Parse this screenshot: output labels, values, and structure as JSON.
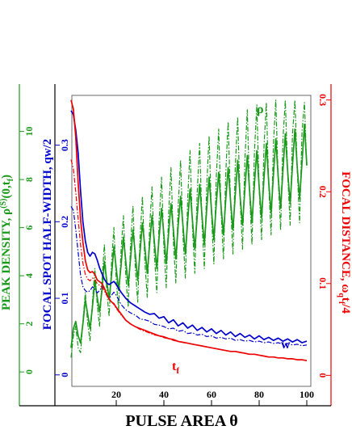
{
  "chart_data": {
    "type": "line",
    "xlabel": "PULSE  AREA  θ",
    "xlim": [
      0,
      100
    ],
    "x_ticks": [
      "20",
      "40",
      "60",
      "80",
      "100"
    ],
    "axes": {
      "peak_density": {
        "label": "PEAK  DENSITY,  ρ(S)(0,tf)",
        "label_main": "PEAK  DENSITY,  ρ",
        "label_sup": "(S)",
        "label_tail": "(0,t",
        "label_sub": "f",
        "label_end": ")",
        "ylim": [
          -0.6,
          11.5
        ],
        "ticks": [
          "0",
          "2",
          "4",
          "6",
          "8",
          "10"
        ],
        "color": "#1a9a1a"
      },
      "half_width": {
        "label": "FOCAL  SPOT  HALF-WIDTH,  qw/2",
        "ylim": [
          -0.015,
          0.365
        ],
        "ticks": [
          "0",
          "0.1",
          "0.2",
          "0.3"
        ],
        "color": "#0000cc"
      },
      "focal_distance": {
        "label": "FOCAL  DISTANCE,  ωqtf/4",
        "label_main": "FOCAL  DISTANCE,  ω",
        "label_sub1": "q",
        "label_mid": "t",
        "label_sub2": "f",
        "label_end": "/4",
        "ylim": [
          -0.012,
          0.305
        ],
        "ticks": [
          "0",
          "0.1",
          "0.2",
          "0.3"
        ],
        "color": "#ee0000"
      }
    },
    "annotations": {
      "rho": "ρ",
      "w": "w",
      "tf_main": "t",
      "tf_sub": "f"
    },
    "series": [
      {
        "key": "rho_solid",
        "axis": "peak_density",
        "color": "#1a9a1a",
        "style": "solid",
        "x": [
          1,
          2,
          3,
          4,
          5,
          6,
          7,
          8,
          9,
          10,
          11,
          12,
          13,
          14,
          15,
          16,
          17,
          18,
          19,
          20,
          21,
          22,
          23,
          24,
          25,
          26,
          27,
          28,
          29,
          30,
          31,
          32,
          33,
          34,
          35,
          36,
          37,
          38,
          39,
          40,
          41,
          42,
          43,
          44,
          45,
          46,
          47,
          48,
          49,
          50,
          51,
          52,
          53,
          54,
          55,
          56,
          57,
          58,
          59,
          60,
          61,
          62,
          63,
          64,
          65,
          66,
          67,
          68,
          69,
          70,
          71,
          72,
          73,
          74,
          75,
          76,
          77,
          78,
          79,
          80,
          81,
          82,
          83,
          84,
          85,
          86,
          87,
          88,
          89,
          90,
          91,
          92,
          93,
          94,
          95,
          96,
          97,
          98,
          99,
          100
        ],
        "values": [
          1.0,
          1.8,
          2.1,
          1.5,
          1.2,
          2.0,
          3.0,
          2.4,
          1.8,
          2.7,
          3.8,
          3.1,
          2.5,
          3.4,
          4.6,
          3.8,
          3.0,
          4.0,
          5.2,
          4.3,
          3.4,
          4.4,
          5.6,
          4.6,
          3.6,
          4.7,
          5.9,
          4.9,
          3.8,
          5.0,
          6.2,
          5.2,
          4.1,
          5.3,
          6.5,
          5.4,
          4.3,
          5.6,
          6.8,
          5.7,
          4.5,
          5.8,
          7.0,
          5.9,
          4.7,
          6.1,
          7.3,
          6.1,
          4.9,
          6.3,
          7.6,
          6.3,
          5.1,
          6.5,
          7.8,
          6.5,
          5.3,
          6.8,
          8.1,
          6.7,
          5.5,
          7.0,
          8.3,
          6.9,
          5.7,
          7.2,
          8.5,
          7.1,
          5.9,
          7.4,
          8.8,
          7.3,
          6.1,
          7.6,
          9.0,
          7.5,
          6.2,
          7.8,
          9.2,
          7.7,
          6.4,
          8.0,
          9.5,
          7.9,
          6.6,
          8.2,
          9.7,
          8.1,
          6.8,
          8.4,
          9.9,
          8.3,
          7.0,
          8.6,
          10.1,
          8.5,
          7.2,
          8.7,
          10.3,
          8.6
        ]
      },
      {
        "key": "rho_dashdot",
        "axis": "peak_density",
        "color": "#1a9a1a",
        "style": "dashdot",
        "x": [
          1,
          2,
          3,
          4,
          5,
          6,
          7,
          8,
          9,
          10,
          11,
          12,
          13,
          14,
          15,
          16,
          17,
          18,
          19,
          20,
          21,
          22,
          23,
          24,
          25,
          26,
          27,
          28,
          29,
          30,
          31,
          32,
          33,
          34,
          35,
          36,
          37,
          38,
          39,
          40,
          41,
          42,
          43,
          44,
          45,
          46,
          47,
          48,
          49,
          50,
          51,
          52,
          53,
          54,
          55,
          56,
          57,
          58,
          59,
          60,
          61,
          62,
          63,
          64,
          65,
          66,
          67,
          68,
          69,
          70,
          71,
          72,
          73,
          74,
          75,
          76,
          77,
          78,
          79,
          80,
          81,
          82,
          83,
          84,
          85,
          86,
          87,
          88,
          89,
          90,
          91,
          92,
          93,
          94,
          95,
          96,
          97,
          98,
          99,
          100
        ],
        "values": [
          0.6,
          1.5,
          1.9,
          1.0,
          0.8,
          2.1,
          3.3,
          2.0,
          1.3,
          2.9,
          4.3,
          2.8,
          1.9,
          3.8,
          5.3,
          3.4,
          2.3,
          4.5,
          6.0,
          3.8,
          2.6,
          5.0,
          6.5,
          4.0,
          2.7,
          5.3,
          6.9,
          4.3,
          2.9,
          5.6,
          7.3,
          4.6,
          3.1,
          6.0,
          7.7,
          4.9,
          3.3,
          6.3,
          8.1,
          5.2,
          3.5,
          6.6,
          8.5,
          5.4,
          3.7,
          6.9,
          8.8,
          5.7,
          3.9,
          7.2,
          9.2,
          6.0,
          4.1,
          7.5,
          9.5,
          6.2,
          4.3,
          7.8,
          9.8,
          6.5,
          4.5,
          8.1,
          10.1,
          6.7,
          4.7,
          8.3,
          10.4,
          7.0,
          4.9,
          8.6,
          10.6,
          7.2,
          5.1,
          8.8,
          10.9,
          7.4,
          5.3,
          9.1,
          11.1,
          7.6,
          5.5,
          9.3,
          11.2,
          7.8,
          5.7,
          9.5,
          11.3,
          8.0,
          5.9,
          9.7,
          11.3,
          8.2,
          6.1,
          9.9,
          11.3,
          8.4,
          6.2,
          10.0,
          11.2,
          8.5
        ]
      },
      {
        "key": "w_solid",
        "axis": "half_width",
        "color": "#0000cc",
        "style": "solid",
        "x": [
          1,
          2,
          3,
          4,
          5,
          6,
          7,
          8,
          9,
          10,
          11,
          12,
          13,
          14,
          15,
          16,
          17,
          18,
          19,
          20,
          22,
          24,
          26,
          28,
          30,
          32,
          34,
          36,
          38,
          40,
          42,
          44,
          46,
          48,
          50,
          52,
          54,
          56,
          58,
          60,
          62,
          64,
          66,
          68,
          70,
          72,
          74,
          76,
          78,
          80,
          82,
          84,
          86,
          88,
          90,
          92,
          94,
          96,
          98,
          100
        ],
        "values": [
          0.345,
          0.34,
          0.32,
          0.29,
          0.24,
          0.2,
          0.175,
          0.16,
          0.155,
          0.16,
          0.158,
          0.15,
          0.14,
          0.132,
          0.125,
          0.12,
          0.118,
          0.12,
          0.122,
          0.118,
          0.108,
          0.1,
          0.094,
          0.09,
          0.086,
          0.082,
          0.079,
          0.08,
          0.074,
          0.076,
          0.068,
          0.072,
          0.064,
          0.068,
          0.061,
          0.065,
          0.058,
          0.062,
          0.056,
          0.06,
          0.054,
          0.058,
          0.052,
          0.056,
          0.05,
          0.054,
          0.049,
          0.052,
          0.047,
          0.051,
          0.046,
          0.049,
          0.045,
          0.048,
          0.044,
          0.047,
          0.043,
          0.046,
          0.042,
          0.044
        ]
      },
      {
        "key": "w_dashdot",
        "axis": "half_width",
        "color": "#0000cc",
        "style": "dashdot",
        "x": [
          1,
          2,
          3,
          4,
          5,
          6,
          7,
          8,
          9,
          10,
          11,
          12,
          13,
          14,
          15,
          16,
          17,
          18,
          19,
          20,
          22,
          24,
          26,
          28,
          30,
          32,
          34,
          36,
          38,
          40,
          42,
          44,
          46,
          48,
          50,
          52,
          54,
          56,
          58,
          60,
          62,
          64,
          66,
          68,
          70,
          72,
          74,
          76,
          78,
          80,
          82,
          84,
          86,
          88,
          90,
          92,
          94,
          96,
          98,
          100
        ],
        "values": [
          0.22,
          0.215,
          0.19,
          0.16,
          0.13,
          0.115,
          0.11,
          0.108,
          0.11,
          0.115,
          0.112,
          0.107,
          0.11,
          0.115,
          0.113,
          0.105,
          0.1,
          0.104,
          0.108,
          0.104,
          0.092,
          0.085,
          0.081,
          0.078,
          0.073,
          0.072,
          0.07,
          0.066,
          0.065,
          0.063,
          0.06,
          0.061,
          0.057,
          0.058,
          0.054,
          0.055,
          0.052,
          0.053,
          0.05,
          0.051,
          0.048,
          0.049,
          0.047,
          0.048,
          0.045,
          0.046,
          0.044,
          0.045,
          0.043,
          0.044,
          0.042,
          0.043,
          0.041,
          0.042,
          0.04,
          0.041,
          0.039,
          0.04,
          0.038,
          0.039
        ]
      },
      {
        "key": "tf_solid",
        "axis": "focal_distance",
        "color": "#ee0000",
        "style": "solid",
        "x": [
          1,
          2,
          3,
          4,
          5,
          6,
          7,
          8,
          9,
          10,
          11,
          12,
          13,
          14,
          15,
          16,
          17,
          18,
          19,
          20,
          22,
          24,
          26,
          28,
          30,
          32,
          34,
          36,
          38,
          40,
          42,
          44,
          46,
          48,
          50,
          52,
          54,
          56,
          58,
          60,
          62,
          64,
          66,
          68,
          70,
          72,
          74,
          76,
          78,
          80,
          82,
          84,
          86,
          88,
          90,
          92,
          94,
          96,
          98,
          100
        ],
        "values": [
          0.3,
          0.29,
          0.26,
          0.21,
          0.17,
          0.145,
          0.125,
          0.115,
          0.112,
          0.113,
          0.11,
          0.104,
          0.102,
          0.1,
          0.095,
          0.088,
          0.083,
          0.08,
          0.078,
          0.074,
          0.067,
          0.06,
          0.056,
          0.053,
          0.051,
          0.049,
          0.047,
          0.045,
          0.043,
          0.042,
          0.04,
          0.039,
          0.037,
          0.036,
          0.035,
          0.034,
          0.033,
          0.032,
          0.031,
          0.03,
          0.029,
          0.028,
          0.027,
          0.026,
          0.026,
          0.025,
          0.024,
          0.023,
          0.023,
          0.022,
          0.021,
          0.02,
          0.02,
          0.019,
          0.019,
          0.018,
          0.018,
          0.017,
          0.017,
          0.016
        ]
      },
      {
        "key": "tf_dashdot",
        "axis": "focal_distance",
        "color": "#ee0000",
        "style": "dashdot",
        "x": [
          1,
          2,
          3,
          4,
          5,
          6,
          7,
          8,
          9,
          10,
          11,
          12,
          13,
          14,
          15,
          16,
          17,
          18,
          19,
          20,
          22,
          24,
          26,
          28,
          30,
          32,
          34,
          36,
          38,
          40,
          42,
          44,
          46,
          48,
          50,
          52,
          54,
          56,
          58,
          60,
          62,
          64,
          66,
          68,
          70,
          72,
          74,
          76,
          78,
          80,
          82,
          84,
          86,
          88,
          90,
          92,
          94,
          96,
          98,
          100
        ],
        "values": [
          0.235,
          0.225,
          0.2,
          0.17,
          0.142,
          0.122,
          0.11,
          0.105,
          0.103,
          0.106,
          0.104,
          0.1,
          0.098,
          0.096,
          0.092,
          0.087,
          0.083,
          0.08,
          0.077,
          0.073,
          0.066,
          0.06,
          0.056,
          0.053,
          0.05,
          0.048,
          0.046,
          0.044,
          0.043,
          0.041,
          0.04,
          0.038,
          0.037,
          0.036,
          0.035,
          0.034,
          0.033,
          0.032,
          0.031,
          0.03,
          0.029,
          0.028,
          0.027,
          0.026,
          0.026,
          0.025,
          0.024,
          0.023,
          0.023,
          0.022,
          0.021,
          0.02,
          0.02,
          0.019,
          0.019,
          0.018,
          0.018,
          0.017,
          0.017,
          0.016
        ]
      }
    ]
  }
}
